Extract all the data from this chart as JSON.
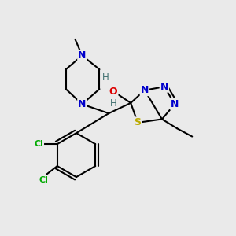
{
  "background_color": "#eaeaea",
  "atom_colors": {
    "C": "#000000",
    "N": "#0000cc",
    "O": "#dd0000",
    "S": "#bbaa00",
    "Cl": "#00aa00",
    "H": "#407070"
  },
  "figsize": [
    3.0,
    3.0
  ],
  "dpi": 100
}
